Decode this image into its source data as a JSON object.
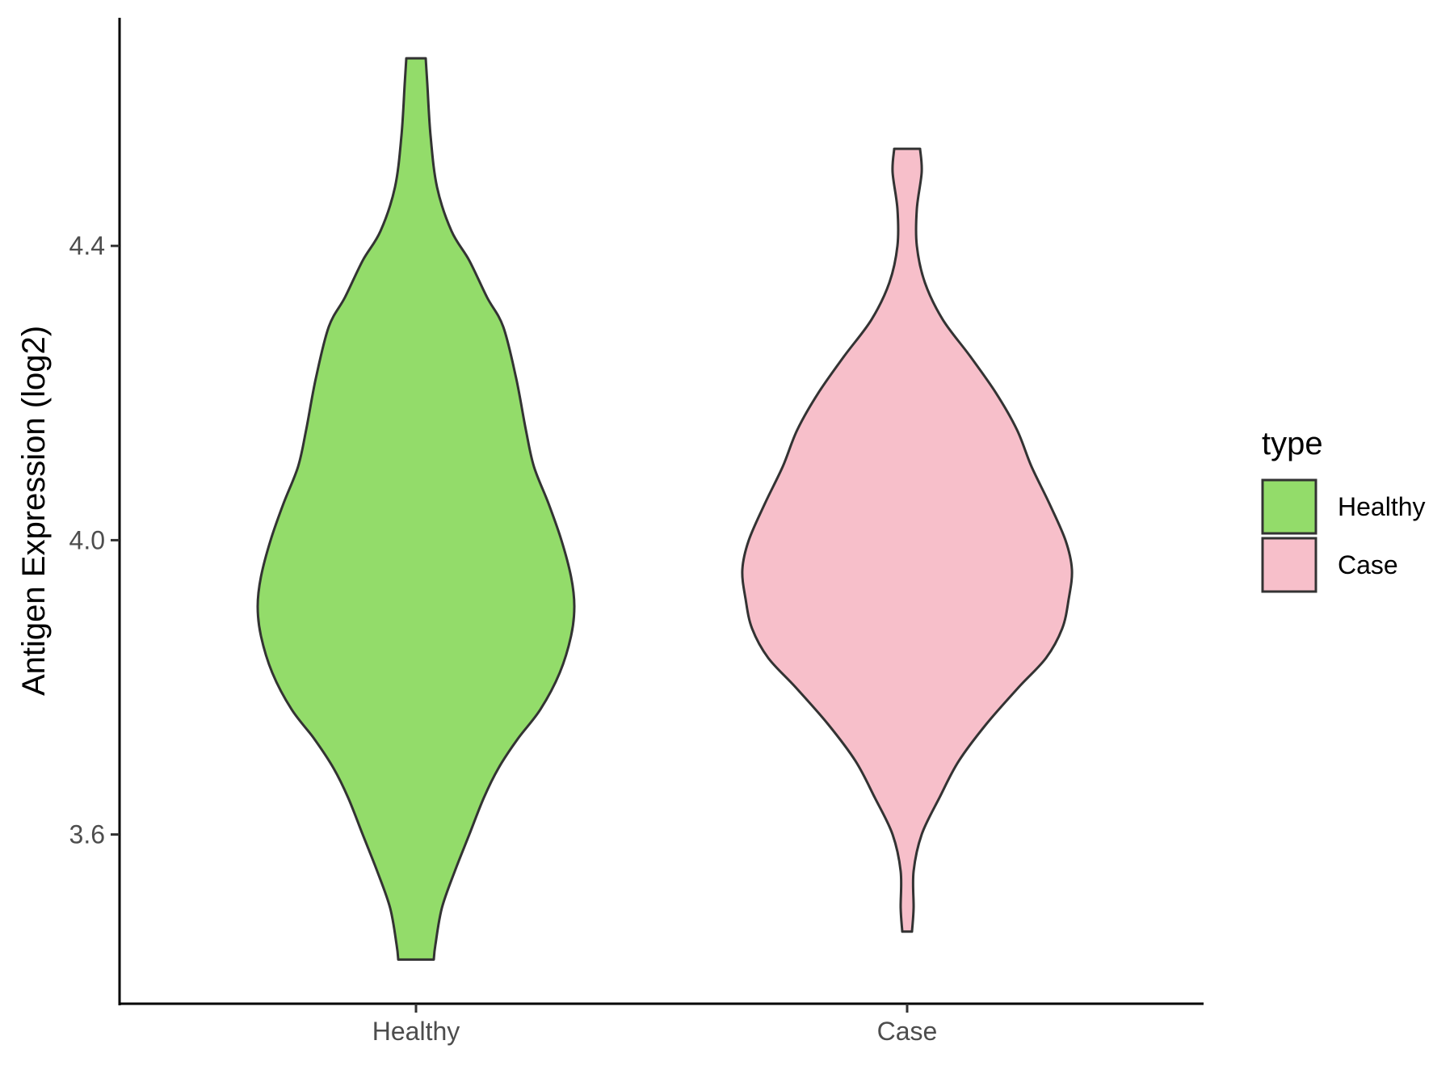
{
  "chart_data": {
    "type": "violin",
    "title": "",
    "xlabel": "",
    "ylabel": "Antigen Expression (log2)",
    "ylim": [
      3.37,
      4.71
    ],
    "yticks": [
      "3.6",
      "4.0",
      "4.4"
    ],
    "ytick_values": [
      3.6,
      4.0,
      4.4
    ],
    "categories": [
      "Healthy",
      "Case"
    ],
    "grid": false,
    "legend": {
      "title": "type",
      "position": "right",
      "entries": [
        "Healthy",
        "Case"
      ]
    },
    "series": [
      {
        "name": "Healthy",
        "color": "#93dc6a",
        "min": 3.43,
        "max": 4.655,
        "profile": [
          [
            4.655,
            0.06
          ],
          [
            4.62,
            0.07
          ],
          [
            4.55,
            0.09
          ],
          [
            4.48,
            0.13
          ],
          [
            4.42,
            0.22
          ],
          [
            4.38,
            0.33
          ],
          [
            4.33,
            0.44
          ],
          [
            4.29,
            0.54
          ],
          [
            4.22,
            0.62
          ],
          [
            4.15,
            0.68
          ],
          [
            4.1,
            0.73
          ],
          [
            4.05,
            0.82
          ],
          [
            4.0,
            0.9
          ],
          [
            3.95,
            0.96
          ],
          [
            3.91,
            0.98
          ],
          [
            3.87,
            0.96
          ],
          [
            3.82,
            0.89
          ],
          [
            3.77,
            0.77
          ],
          [
            3.73,
            0.63
          ],
          [
            3.69,
            0.51
          ],
          [
            3.65,
            0.42
          ],
          [
            3.6,
            0.33
          ],
          [
            3.55,
            0.24
          ],
          [
            3.5,
            0.16
          ],
          [
            3.45,
            0.12
          ],
          [
            3.43,
            0.11
          ]
        ]
      },
      {
        "name": "Case",
        "color": "#f7bfca",
        "min": 3.468,
        "max": 4.532,
        "profile": [
          [
            4.532,
            0.08
          ],
          [
            4.5,
            0.09
          ],
          [
            4.45,
            0.06
          ],
          [
            4.4,
            0.06
          ],
          [
            4.35,
            0.11
          ],
          [
            4.3,
            0.22
          ],
          [
            4.25,
            0.39
          ],
          [
            4.2,
            0.55
          ],
          [
            4.15,
            0.68
          ],
          [
            4.1,
            0.77
          ],
          [
            4.05,
            0.88
          ],
          [
            4.0,
            0.98
          ],
          [
            3.96,
            1.02
          ],
          [
            3.92,
            1.0
          ],
          [
            3.88,
            0.96
          ],
          [
            3.84,
            0.86
          ],
          [
            3.8,
            0.69
          ],
          [
            3.75,
            0.49
          ],
          [
            3.7,
            0.32
          ],
          [
            3.65,
            0.2
          ],
          [
            3.6,
            0.09
          ],
          [
            3.55,
            0.04
          ],
          [
            3.5,
            0.04
          ],
          [
            3.468,
            0.03
          ]
        ]
      }
    ]
  }
}
